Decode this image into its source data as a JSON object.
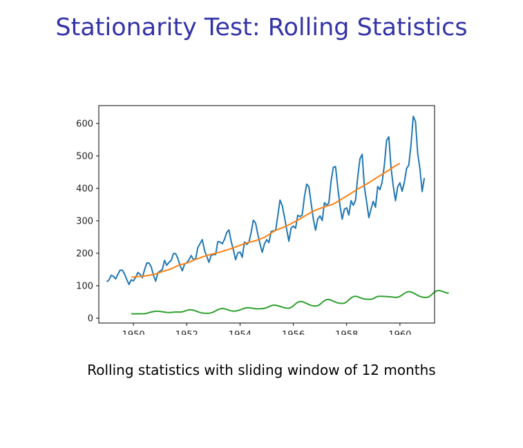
{
  "slide": {
    "title": "Stationarity Test: Rolling Statistics",
    "caption": "Rolling statistics with sliding window of 12 months"
  },
  "chart_data": {
    "type": "line",
    "title": "",
    "xlabel": "",
    "ylabel": "",
    "xlim": [
      1948.7,
      1961.3
    ],
    "ylim": [
      -15,
      655
    ],
    "xticks": [
      1950,
      1952,
      1954,
      1956,
      1958,
      1960
    ],
    "yticks": [
      0,
      100,
      200,
      300,
      400,
      500,
      600
    ],
    "grid": false,
    "legend": "none",
    "series": [
      {
        "color": "#1f77b4",
        "x_start": 1949.0,
        "x_step": 0.0833333,
        "values": [
          112,
          118,
          132,
          129,
          121,
          135,
          148,
          148,
          136,
          119,
          104,
          118,
          115,
          126,
          141,
          135,
          125,
          149,
          170,
          170,
          158,
          133,
          114,
          140,
          145,
          150,
          178,
          163,
          172,
          178,
          199,
          199,
          184,
          162,
          146,
          166,
          171,
          180,
          193,
          181,
          183,
          218,
          230,
          242,
          209,
          191,
          172,
          194,
          196,
          196,
          236,
          235,
          229,
          243,
          264,
          272,
          237,
          211,
          180,
          201,
          204,
          188,
          235,
          227,
          234,
          264,
          302,
          293,
          259,
          229,
          203,
          229,
          242,
          233,
          267,
          269,
          270,
          315,
          364,
          347,
          312,
          274,
          237,
          278,
          284,
          277,
          317,
          313,
          318,
          374,
          413,
          405,
          355,
          306,
          271,
          306,
          315,
          301,
          356,
          348,
          355,
          422,
          465,
          467,
          404,
          347,
          305,
          336,
          340,
          318,
          362,
          348,
          363,
          435,
          491,
          505,
          404,
          359,
          310,
          337,
          360,
          342,
          406,
          396,
          420,
          472,
          548,
          559,
          463,
          407,
          362,
          405,
          417,
          391,
          419,
          461,
          472,
          535,
          622,
          606,
          508,
          461,
          390,
          432
        ]
      },
      {
        "color": "#ff7f0e",
        "x_start": 1949.9167,
        "x_step": 0.0833333,
        "values": [
          126.7,
          126.9,
          127.6,
          128.3,
          128.8,
          129.0,
          129.8,
          131.0,
          132.2,
          133.3,
          134.7,
          136.4,
          138.8,
          141.0,
          144.0,
          145.7,
          147.7,
          149.6,
          152.4,
          155.6,
          158.7,
          162.0,
          165.0,
          166.3,
          167.8,
          170.0,
          172.3,
          175.5,
          178.6,
          181.4,
          183.6,
          186.1,
          188.4,
          190.9,
          193.1,
          195.0,
          197.0,
          198.5,
          199.9,
          201.8,
          203.5,
          205.6,
          208.1,
          210.0,
          212.3,
          214.4,
          216.9,
          219.4,
          222.0,
          224.7,
          227.2,
          229.6,
          231.8,
          233.8,
          235.5,
          237.1,
          238.9,
          241.2,
          243.7,
          246.2,
          249.6,
          253.2,
          257.6,
          262.2,
          266.7,
          270.3,
          273.3,
          276.1,
          278.6,
          281.5,
          284.6,
          287.8,
          291.2,
          295.0,
          298.6,
          302.1,
          305.9,
          310.1,
          314.3,
          318.5,
          322.1,
          326.0,
          329.6,
          332.6,
          335.5,
          338.1,
          340.7,
          343.1,
          345.5,
          347.3,
          349.2,
          351.8,
          355.6,
          359.7,
          363.9,
          368.0,
          372.2,
          376.4,
          380.6,
          384.8,
          389.2,
          393.6,
          397.8,
          401.7,
          405.5,
          409.4,
          413.4,
          417.4,
          421.7,
          426.2,
          430.7,
          435.0,
          439.2,
          443.3,
          447.6,
          451.9,
          456.4,
          460.8,
          465.2,
          469.5,
          473.8,
          476.5
        ]
      },
      {
        "color": "#2ca02c",
        "x_start": 1949.9167,
        "x_step": 0.0833333,
        "values": [
          13.7,
          13.5,
          13.5,
          13.6,
          13.5,
          13.6,
          13.8,
          15.1,
          17.0,
          19.0,
          20.4,
          21.4,
          21.5,
          20.8,
          19.8,
          18.7,
          17.8,
          17.4,
          17.7,
          18.4,
          19.0,
          19.0,
          18.8,
          19.5,
          21.5,
          23.9,
          25.6,
          25.8,
          24.6,
          22.4,
          19.9,
          17.6,
          16.0,
          15.2,
          15.1,
          15.4,
          16.5,
          18.9,
          22.5,
          26.1,
          28.7,
          29.9,
          29.0,
          26.9,
          24.5,
          22.6,
          21.6,
          22.0,
          23.5,
          25.6,
          28.1,
          30.5,
          32.0,
          32.2,
          31.3,
          30.1,
          29.2,
          28.9,
          29.0,
          29.3,
          30.3,
          32.4,
          35.4,
          38.4,
          40.1,
          40.0,
          38.5,
          36.3,
          34.1,
          32.3,
          31.0,
          30.7,
          33.0,
          38.1,
          44.3,
          49.3,
          51.5,
          51.0,
          48.4,
          45.2,
          42.0,
          39.4,
          37.8,
          37.5,
          38.5,
          42.4,
          48.7,
          54.2,
          57.3,
          57.6,
          55.6,
          52.5,
          49.4,
          47.1,
          45.9,
          45.5,
          46.3,
          50.3,
          56.6,
          62.5,
          66.5,
          67.6,
          66.2,
          63.4,
          60.8,
          59.0,
          58.3,
          58.3,
          58.2,
          60.0,
          64.2,
          67.1,
          67.5,
          67.3,
          67.0,
          66.6,
          66.1,
          65.5,
          64.8,
          64.3,
          64.7,
          67.1,
          71.7,
          76.5,
          80.2,
          81.7,
          80.9,
          78.0,
          74.3,
          70.3,
          67.2,
          65.0,
          64.0,
          64.0,
          65.6,
          70.5,
          77.1,
          82.6,
          85.0,
          84.8,
          83.0,
          80.5,
          78.0,
          77.0
        ]
      }
    ]
  }
}
